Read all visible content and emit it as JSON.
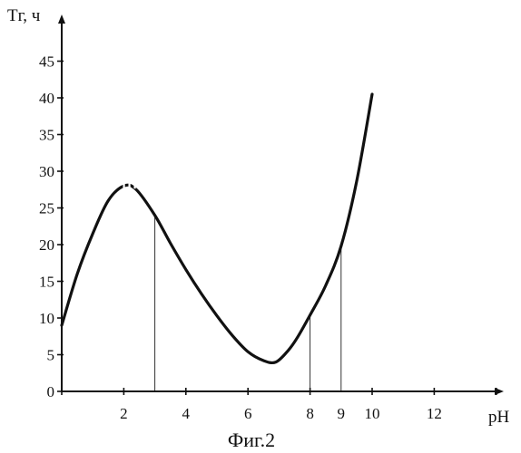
{
  "chart_data": {
    "type": "line",
    "ylabel": "Tг, ч",
    "xlabel": "pH",
    "caption": "Фиг.2",
    "xlim": [
      0,
      15
    ],
    "ylim": [
      0,
      48
    ],
    "x_ticks": [
      2,
      4,
      6,
      8,
      9,
      10,
      12
    ],
    "x_minor_ticks": [
      0,
      2,
      4,
      6,
      8,
      10,
      12,
      14
    ],
    "y_ticks": [
      0,
      5,
      10,
      15,
      20,
      25,
      30,
      35,
      40,
      45
    ],
    "grid": false,
    "series": [
      {
        "x": [
          0.0,
          0.5,
          1.0,
          1.5,
          2.0,
          2.4,
          3.0,
          3.5,
          4.0,
          4.5,
          5.0,
          5.5,
          6.0,
          6.5,
          6.9,
          7.3,
          7.6,
          8.0,
          8.5,
          9.0,
          9.5,
          10.0
        ],
        "y": [
          9,
          16,
          21.5,
          26,
          28,
          27.5,
          24,
          20.2,
          16.6,
          13.3,
          10.3,
          7.6,
          5.4,
          4.2,
          4.0,
          5.6,
          7.4,
          10.4,
          14.4,
          19.8,
          28.6,
          40.5
        ]
      }
    ],
    "dotted_segment": {
      "x": [
        1.9,
        2.35
      ]
    },
    "reference_lines": [
      {
        "x": 3.0,
        "y": 24
      },
      {
        "x": 8.0,
        "y": 10.4
      },
      {
        "x": 9.0,
        "y": 19.8
      }
    ]
  }
}
